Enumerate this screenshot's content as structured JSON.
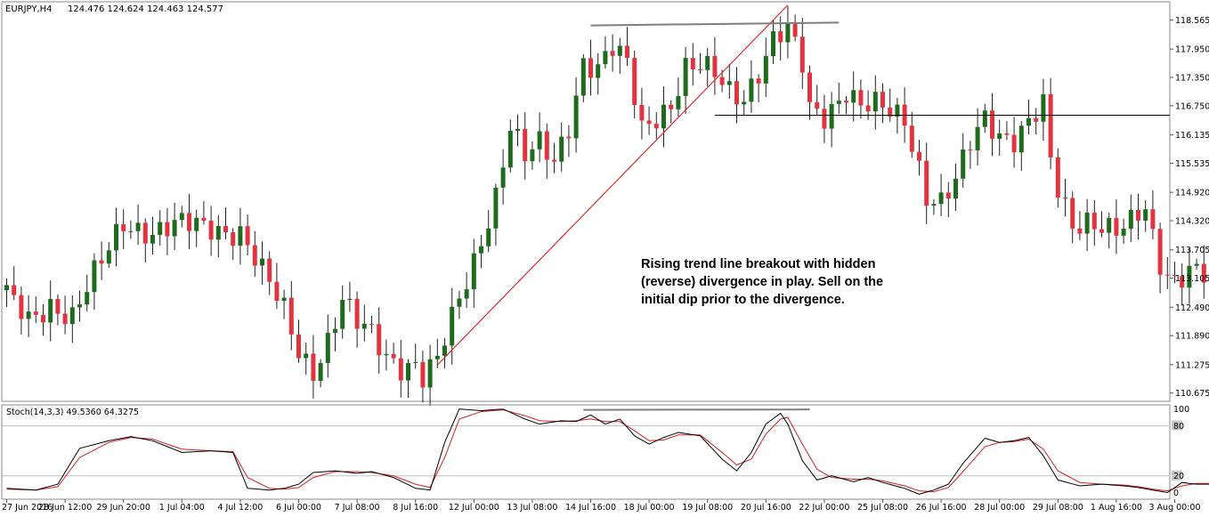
{
  "header": {
    "symbol": "EURJPY,H4",
    "ohlc": "124.476 124.624 124.463 124.577"
  },
  "annotation": {
    "lines": [
      "Rising trend line breakout with hidden",
      "(reverse) divergence in play. Sell on the",
      "initial dip prior to the divergence."
    ]
  },
  "indicator": {
    "title": "Stoch(14,3,3) 49.5360 64.3275",
    "levels": [
      100,
      80,
      20,
      0
    ],
    "level_labels": [
      "100",
      "80",
      "20",
      "0"
    ]
  },
  "colors": {
    "bull": "#1e6b1e",
    "bear": "#e23340",
    "trendline": "#e41d1d",
    "stoch_main": "#000000",
    "stoch_signal": "#d42020",
    "divergence_line": "#7f7f7f",
    "grid": "#c4c4c4"
  },
  "chart_data": [
    {
      "type": "candlestick",
      "symbol": "EURJPY",
      "timeframe": "H4",
      "ylim": [
        110.5,
        118.95
      ],
      "y_ticks": [
        "118.565",
        "117.950",
        "117.350",
        "116.750",
        "116.135",
        "115.535",
        "114.920",
        "114.320",
        "113.705",
        "113.105",
        "112.490",
        "111.890",
        "111.275",
        "110.675"
      ],
      "x_tick_labels": [
        "27 Jun 2016",
        "28 Jun 12:00",
        "29 Jun 20:00",
        "1 Jul 04:00",
        "4 Jul 12:00",
        "6 Jul 00:00",
        "7 Jul 08:00",
        "8 Jul 16:00",
        "12 Jul 00:00",
        "13 Jul 08:00",
        "14 Jul 16:00",
        "18 Jul 00:00",
        "19 Jul 08:00",
        "20 Jul 16:00",
        "22 Jul 00:00",
        "25 Jul 08:00",
        "26 Jul 16:00",
        "28 Jul 00:00",
        "29 Jul 08:00",
        "1 Aug 16:00",
        "3 Aug 00:00"
      ],
      "x_tick_bars": [
        0,
        8,
        16,
        24,
        32,
        40,
        48,
        56,
        64,
        72,
        80,
        88,
        96,
        104,
        112,
        120,
        128,
        136,
        144,
        152,
        160
      ],
      "close_path": [
        [
          0,
          112.7
        ],
        [
          3,
          112.2
        ],
        [
          6,
          112.6
        ],
        [
          9,
          112.3
        ],
        [
          13,
          113.4
        ],
        [
          16,
          114.3
        ],
        [
          20,
          114.1
        ],
        [
          24,
          114.2
        ],
        [
          28,
          114.2
        ],
        [
          32,
          114.1
        ],
        [
          35,
          113.2
        ],
        [
          38,
          112.4
        ],
        [
          40,
          111.6
        ],
        [
          42,
          111.2
        ],
        [
          44,
          111.8
        ],
        [
          46,
          112.6
        ],
        [
          48,
          112.1
        ],
        [
          50,
          111.9
        ],
        [
          52,
          111.5
        ],
        [
          54,
          111.3
        ],
        [
          56,
          111.3
        ],
        [
          57,
          111.0
        ],
        [
          59,
          111.3
        ],
        [
          61,
          112.2
        ],
        [
          64,
          113.5
        ],
        [
          67,
          114.9
        ],
        [
          69,
          116.3
        ],
        [
          71,
          115.6
        ],
        [
          73,
          115.9
        ],
        [
          75,
          115.6
        ],
        [
          77,
          116.4
        ],
        [
          79,
          117.7
        ],
        [
          81,
          117.5
        ],
        [
          83,
          117.9
        ],
        [
          85,
          117.6
        ],
        [
          87,
          116.3
        ],
        [
          89,
          116.6
        ],
        [
          91,
          116.8
        ],
        [
          93,
          117.5
        ],
        [
          95,
          117.5
        ],
        [
          97,
          117.4
        ],
        [
          99,
          117.1
        ],
        [
          101,
          117.0
        ],
        [
          103,
          117.5
        ],
        [
          105,
          118.1
        ],
        [
          107,
          118.3
        ],
        [
          109,
          117.6
        ],
        [
          110,
          116.7
        ],
        [
          112,
          116.6
        ],
        [
          115,
          117.1
        ],
        [
          117,
          116.7
        ],
        [
          119,
          116.7
        ],
        [
          121,
          116.6
        ],
        [
          123,
          116.5
        ],
        [
          125,
          115.5
        ],
        [
          126,
          114.9
        ],
        [
          128,
          114.7
        ],
        [
          130,
          115.1
        ],
        [
          132,
          115.9
        ],
        [
          134,
          116.5
        ],
        [
          136,
          116.2
        ],
        [
          138,
          116.1
        ],
        [
          140,
          116.4
        ],
        [
          142,
          116.7
        ],
        [
          143,
          115.5
        ],
        [
          144,
          114.9
        ],
        [
          146,
          114.2
        ],
        [
          148,
          114.4
        ],
        [
          150,
          114.3
        ],
        [
          152,
          114.1
        ],
        [
          154,
          114.2
        ],
        [
          156,
          114.5
        ],
        [
          157,
          113.9
        ],
        [
          158,
          113.4
        ],
        [
          160,
          113.1
        ],
        [
          162,
          113.4
        ],
        [
          164,
          113.2
        ]
      ],
      "rising_trendline": [
        [
          59,
          111.27
        ],
        [
          107,
          118.88
        ]
      ],
      "resistance_line": [
        [
          80,
          118.45
        ],
        [
          114,
          118.51
        ]
      ],
      "breakout_level": {
        "price": 116.55,
        "from_bar": 97
      }
    },
    {
      "type": "line",
      "title": "Stoch(14,3,3)",
      "ylim": [
        -8,
        105
      ],
      "levels": [
        80,
        20
      ],
      "main_path": [
        [
          0,
          5
        ],
        [
          4,
          3
        ],
        [
          7,
          10
        ],
        [
          10,
          53
        ],
        [
          14,
          62
        ],
        [
          17,
          67
        ],
        [
          20,
          62
        ],
        [
          24,
          48
        ],
        [
          28,
          50
        ],
        [
          31,
          48
        ],
        [
          33,
          5
        ],
        [
          36,
          3
        ],
        [
          38,
          5
        ],
        [
          40,
          10
        ],
        [
          42,
          24
        ],
        [
          45,
          26
        ],
        [
          48,
          23
        ],
        [
          50,
          25
        ],
        [
          53,
          18
        ],
        [
          56,
          5
        ],
        [
          58,
          3
        ],
        [
          60,
          60
        ],
        [
          62,
          100
        ],
        [
          65,
          98
        ],
        [
          68,
          100
        ],
        [
          71,
          88
        ],
        [
          73,
          82
        ],
        [
          76,
          86
        ],
        [
          78,
          85
        ],
        [
          80,
          93
        ],
        [
          82,
          82
        ],
        [
          84,
          88
        ],
        [
          86,
          68
        ],
        [
          88,
          58
        ],
        [
          90,
          66
        ],
        [
          92,
          72
        ],
        [
          95,
          68
        ],
        [
          98,
          40
        ],
        [
          100,
          26
        ],
        [
          102,
          48
        ],
        [
          104,
          82
        ],
        [
          106,
          95
        ],
        [
          107,
          82
        ],
        [
          109,
          38
        ],
        [
          111,
          15
        ],
        [
          113,
          20
        ],
        [
          116,
          13
        ],
        [
          118,
          18
        ],
        [
          120,
          12
        ],
        [
          123,
          5
        ],
        [
          125,
          -2
        ],
        [
          127,
          3
        ],
        [
          129,
          10
        ],
        [
          131,
          35
        ],
        [
          134,
          65
        ],
        [
          136,
          60
        ],
        [
          138,
          62
        ],
        [
          140,
          66
        ],
        [
          142,
          44
        ],
        [
          144,
          15
        ],
        [
          147,
          8
        ],
        [
          150,
          10
        ],
        [
          153,
          8
        ],
        [
          155,
          6
        ],
        [
          157,
          3
        ],
        [
          159,
          0
        ],
        [
          161,
          12
        ],
        [
          163,
          10
        ]
      ],
      "signal_path": [
        [
          0,
          4
        ],
        [
          4,
          3
        ],
        [
          7,
          7
        ],
        [
          10,
          42
        ],
        [
          14,
          60
        ],
        [
          17,
          66
        ],
        [
          20,
          64
        ],
        [
          24,
          52
        ],
        [
          28,
          50
        ],
        [
          31,
          49
        ],
        [
          33,
          18
        ],
        [
          36,
          5
        ],
        [
          38,
          4
        ],
        [
          40,
          6
        ],
        [
          42,
          18
        ],
        [
          45,
          25
        ],
        [
          48,
          25
        ],
        [
          50,
          24
        ],
        [
          53,
          20
        ],
        [
          56,
          10
        ],
        [
          58,
          6
        ],
        [
          60,
          42
        ],
        [
          62,
          88
        ],
        [
          65,
          97
        ],
        [
          68,
          99
        ],
        [
          71,
          92
        ],
        [
          73,
          86
        ],
        [
          76,
          85
        ],
        [
          78,
          86
        ],
        [
          80,
          88
        ],
        [
          82,
          85
        ],
        [
          84,
          85
        ],
        [
          86,
          74
        ],
        [
          88,
          62
        ],
        [
          90,
          63
        ],
        [
          92,
          69
        ],
        [
          95,
          69
        ],
        [
          98,
          48
        ],
        [
          100,
          33
        ],
        [
          102,
          40
        ],
        [
          104,
          70
        ],
        [
          106,
          88
        ],
        [
          107,
          90
        ],
        [
          109,
          58
        ],
        [
          111,
          28
        ],
        [
          113,
          18
        ],
        [
          116,
          16
        ],
        [
          118,
          16
        ],
        [
          120,
          14
        ],
        [
          123,
          8
        ],
        [
          125,
          2
        ],
        [
          127,
          1
        ],
        [
          129,
          6
        ],
        [
          131,
          25
        ],
        [
          134,
          55
        ],
        [
          136,
          60
        ],
        [
          138,
          61
        ],
        [
          140,
          64
        ],
        [
          142,
          52
        ],
        [
          144,
          26
        ],
        [
          147,
          12
        ],
        [
          150,
          10
        ],
        [
          153,
          9
        ],
        [
          155,
          7
        ],
        [
          157,
          4
        ],
        [
          159,
          2
        ],
        [
          161,
          8
        ],
        [
          163,
          11
        ]
      ],
      "divergence_line": [
        [
          79,
          99
        ],
        [
          110,
          99.5
        ]
      ]
    }
  ]
}
